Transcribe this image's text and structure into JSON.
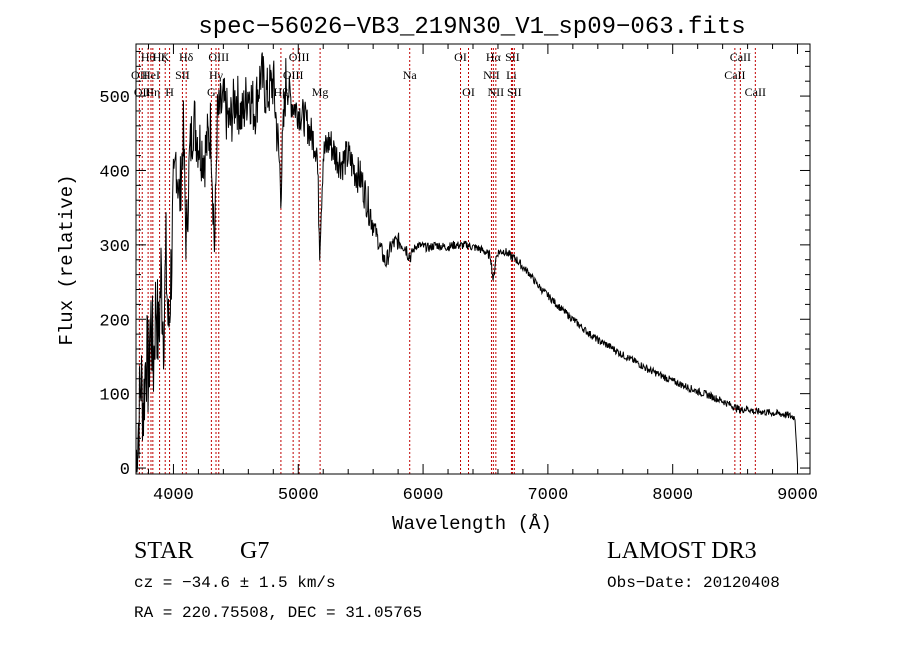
{
  "chart_data": {
    "type": "line",
    "title": "spec−56026−VB3_219N30_V1_sp09−063.fits",
    "xlabel": "Wavelength (Å)",
    "ylabel": "Flux (relative)",
    "xlim": [
      3700,
      9100
    ],
    "ylim": [
      -8,
      570
    ],
    "x_ticks": [
      4000,
      5000,
      6000,
      7000,
      8000,
      9000
    ],
    "x_tick_labels": [
      "4000",
      "5000",
      "6000",
      "7000",
      "8000",
      "9000"
    ],
    "y_ticks": [
      0,
      100,
      200,
      300,
      400,
      500
    ],
    "y_tick_labels": [
      "0",
      "100",
      "200",
      "300",
      "400",
      "500"
    ],
    "grid": false,
    "series": [
      {
        "name": "spectrum",
        "color": "#000000",
        "anchors": [
          [
            3700,
            5
          ],
          [
            3720,
            60
          ],
          [
            3740,
            120
          ],
          [
            3760,
            80
          ],
          [
            3780,
            160
          ],
          [
            3800,
            120
          ],
          [
            3820,
            200
          ],
          [
            3840,
            140
          ],
          [
            3860,
            230
          ],
          [
            3880,
            170
          ],
          [
            3900,
            260
          ],
          [
            3920,
            190
          ],
          [
            3940,
            280
          ],
          [
            3960,
            180
          ],
          [
            3980,
            260
          ],
          [
            4000,
            350
          ],
          [
            4020,
            420
          ],
          [
            4050,
            360
          ],
          [
            4080,
            450
          ],
          [
            4102,
            300
          ],
          [
            4130,
            420
          ],
          [
            4160,
            470
          ],
          [
            4200,
            440
          ],
          [
            4250,
            420
          ],
          [
            4300,
            460
          ],
          [
            4330,
            290
          ],
          [
            4350,
            470
          ],
          [
            4400,
            490
          ],
          [
            4450,
            460
          ],
          [
            4500,
            500
          ],
          [
            4550,
            470
          ],
          [
            4600,
            510
          ],
          [
            4650,
            480
          ],
          [
            4700,
            530
          ],
          [
            4750,
            500
          ],
          [
            4800,
            520
          ],
          [
            4861,
            380
          ],
          [
            4900,
            520
          ],
          [
            4950,
            490
          ],
          [
            5000,
            480
          ],
          [
            5050,
            470
          ],
          [
            5100,
            450
          ],
          [
            5150,
            430
          ],
          [
            5172,
            300
          ],
          [
            5200,
            420
          ],
          [
            5250,
            440
          ],
          [
            5300,
            420
          ],
          [
            5350,
            410
          ],
          [
            5400,
            420
          ],
          [
            5450,
            400
          ],
          [
            5500,
            390
          ],
          [
            5550,
            360
          ],
          [
            5600,
            330
          ],
          [
            5650,
            300
          ],
          [
            5700,
            275
          ],
          [
            5750,
            300
          ],
          [
            5800,
            305
          ],
          [
            5850,
            300
          ],
          [
            5893,
            285
          ],
          [
            5950,
            300
          ],
          [
            6000,
            298
          ],
          [
            6050,
            296
          ],
          [
            6100,
            300
          ],
          [
            6150,
            298
          ],
          [
            6200,
            297
          ],
          [
            6250,
            300
          ],
          [
            6300,
            299
          ],
          [
            6350,
            300
          ],
          [
            6400,
            297
          ],
          [
            6450,
            295
          ],
          [
            6500,
            290
          ],
          [
            6540,
            285
          ],
          [
            6563,
            250
          ],
          [
            6580,
            280
          ],
          [
            6600,
            290
          ],
          [
            6650,
            292
          ],
          [
            6700,
            285
          ],
          [
            6750,
            280
          ],
          [
            6800,
            270
          ],
          [
            6850,
            262
          ],
          [
            6900,
            250
          ],
          [
            6950,
            240
          ],
          [
            7000,
            232
          ],
          [
            7100,
            215
          ],
          [
            7200,
            200
          ],
          [
            7300,
            185
          ],
          [
            7400,
            172
          ],
          [
            7500,
            163
          ],
          [
            7600,
            152
          ],
          [
            7700,
            143
          ],
          [
            7800,
            133
          ],
          [
            7900,
            125
          ],
          [
            8000,
            117
          ],
          [
            8100,
            110
          ],
          [
            8200,
            103
          ],
          [
            8300,
            97
          ],
          [
            8400,
            90
          ],
          [
            8498,
            82
          ],
          [
            8542,
            78
          ],
          [
            8600,
            80
          ],
          [
            8662,
            75
          ],
          [
            8700,
            76
          ],
          [
            8800,
            74
          ],
          [
            8900,
            72
          ],
          [
            8980,
            68
          ],
          [
            9000,
            5
          ]
        ],
        "noise": [
          [
            3700,
            4000,
            70
          ],
          [
            4000,
            4350,
            45
          ],
          [
            4350,
            4900,
            40
          ],
          [
            4900,
            5600,
            25
          ],
          [
            5600,
            5900,
            12
          ],
          [
            5900,
            6800,
            6
          ],
          [
            6800,
            9000,
            5
          ]
        ]
      }
    ],
    "line_markers": [
      {
        "wavelength": 3727,
        "label": "OII",
        "row": 2
      },
      {
        "wavelength": 3750,
        "label": "OII",
        "row": 3
      },
      {
        "wavelength": 3797,
        "label": "Hθ",
        "row": 1
      },
      {
        "wavelength": 3820,
        "label": "HeI",
        "row": 2
      },
      {
        "wavelength": 3835,
        "label": "Hη",
        "row": 3
      },
      {
        "wavelength": 3889,
        "label": "Hζ",
        "row": 1
      },
      {
        "wavelength": 3934,
        "label": "K",
        "row": 1
      },
      {
        "wavelength": 3969,
        "label": "H",
        "row": 3
      },
      {
        "wavelength": 4072,
        "label": "SII",
        "row": 2
      },
      {
        "wavelength": 4102,
        "label": "Hδ",
        "row": 1
      },
      {
        "wavelength": 4304,
        "label": "G",
        "row": 3
      },
      {
        "wavelength": 4341,
        "label": "Hγ",
        "row": 2
      },
      {
        "wavelength": 4363,
        "label": "OIII",
        "row": 1
      },
      {
        "wavelength": 4861,
        "label": "Hβ",
        "row": 3
      },
      {
        "wavelength": 4959,
        "label": "OIII",
        "row": 2
      },
      {
        "wavelength": 5007,
        "label": "OIII",
        "row": 1
      },
      {
        "wavelength": 5175,
        "label": "Mg",
        "row": 3
      },
      {
        "wavelength": 5893,
        "label": "Na",
        "row": 2
      },
      {
        "wavelength": 6300,
        "label": "OI",
        "row": 1
      },
      {
        "wavelength": 6364,
        "label": "OI",
        "row": 3
      },
      {
        "wavelength": 6548,
        "label": "NII",
        "row": 2
      },
      {
        "wavelength": 6563,
        "label": "Hα",
        "row": 1
      },
      {
        "wavelength": 6583,
        "label": "NII",
        "row": 3
      },
      {
        "wavelength": 6708,
        "label": "Li",
        "row": 2
      },
      {
        "wavelength": 6716,
        "label": "SII",
        "row": 1
      },
      {
        "wavelength": 6731,
        "label": "SII",
        "row": 3
      },
      {
        "wavelength": 8498,
        "label": "CaII",
        "row": 2
      },
      {
        "wavelength": 8542,
        "label": "CaII",
        "row": 1
      },
      {
        "wavelength": 8662,
        "label": "CaII",
        "row": 3
      }
    ],
    "marker_color": "#c00000"
  },
  "info": {
    "object_class": "STAR",
    "subclass": "G7",
    "survey": "LAMOST DR3",
    "redshift_text": "cz = −34.6 ± 1.5 km/s",
    "obs_date": "Obs−Date: 20120408",
    "coords": "RA = 220.75508, DEC =  31.05765"
  }
}
